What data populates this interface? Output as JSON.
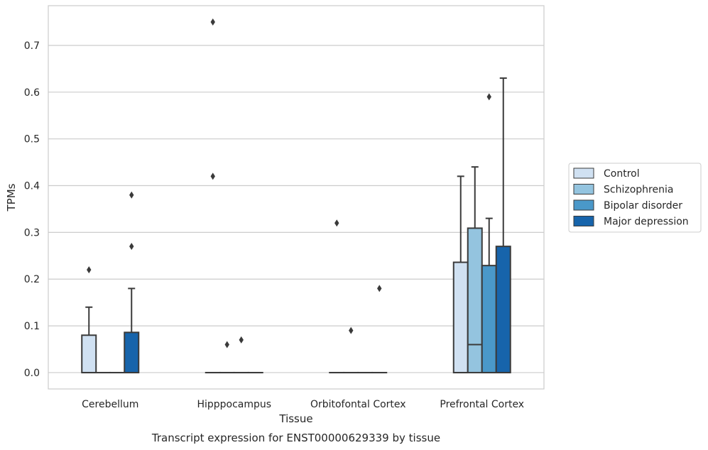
{
  "caption": "Transcript expression for ENST00000629339 by tissue",
  "chart_data": {
    "type": "box",
    "xlabel": "Tissue",
    "ylabel": "TPMs",
    "ylim": [
      -0.035,
      0.785
    ],
    "yticks": [
      0.0,
      0.1,
      0.2,
      0.3,
      0.4,
      0.5,
      0.6,
      0.7
    ],
    "ytick_labels": [
      "0.0",
      "0.1",
      "0.2",
      "0.3",
      "0.4",
      "0.5",
      "0.6",
      "0.7"
    ],
    "grid": true,
    "legend_position": "right",
    "categories": [
      "Cerebellum",
      "Hipppocampus",
      "Orbitofontal Cortex",
      "Prefrontal Cortex"
    ],
    "series": [
      {
        "name": "Control",
        "color": "#d0e1f2",
        "boxes": [
          {
            "min": 0.0,
            "q1": 0.0,
            "median": 0.0,
            "q3": 0.08,
            "max": 0.14,
            "outliers": [
              0.22
            ]
          },
          {
            "min": 0.0,
            "q1": 0.0,
            "median": 0.0,
            "q3": 0.0,
            "max": 0.0,
            "outliers": [
              0.75,
              0.42
            ]
          },
          {
            "min": 0.0,
            "q1": 0.0,
            "median": 0.0,
            "q3": 0.0,
            "max": 0.0,
            "outliers": [
              0.32
            ]
          },
          {
            "min": 0.0,
            "q1": 0.0,
            "median": 0.0,
            "q3": 0.236,
            "max": 0.42,
            "outliers": []
          }
        ]
      },
      {
        "name": "Schizophrenia",
        "color": "#94c4df",
        "boxes": [
          {
            "min": 0.0,
            "q1": 0.0,
            "median": 0.0,
            "q3": 0.0,
            "max": 0.0,
            "outliers": []
          },
          {
            "min": 0.0,
            "q1": 0.0,
            "median": 0.0,
            "q3": 0.0,
            "max": 0.0,
            "outliers": [
              0.06
            ]
          },
          {
            "min": 0.0,
            "q1": 0.0,
            "median": 0.0,
            "q3": 0.0,
            "max": 0.0,
            "outliers": [
              0.09
            ]
          },
          {
            "min": 0.0,
            "q1": 0.0,
            "median": 0.06,
            "q3": 0.309,
            "max": 0.44,
            "outliers": []
          }
        ]
      },
      {
        "name": "Bipolar disorder",
        "color": "#4a98c9",
        "boxes": [
          {
            "min": 0.0,
            "q1": 0.0,
            "median": 0.0,
            "q3": 0.0,
            "max": 0.0,
            "outliers": []
          },
          {
            "min": 0.0,
            "q1": 0.0,
            "median": 0.0,
            "q3": 0.0,
            "max": 0.0,
            "outliers": [
              0.07
            ]
          },
          {
            "min": 0.0,
            "q1": 0.0,
            "median": 0.0,
            "q3": 0.0,
            "max": 0.0,
            "outliers": []
          },
          {
            "min": 0.0,
            "q1": 0.0,
            "median": 0.0,
            "q3": 0.229,
            "max": 0.33,
            "outliers": [
              0.59
            ]
          }
        ]
      },
      {
        "name": "Major depression",
        "color": "#1764ab",
        "boxes": [
          {
            "min": 0.0,
            "q1": 0.0,
            "median": 0.0,
            "q3": 0.086,
            "max": 0.18,
            "outliers": [
              0.27,
              0.38
            ]
          },
          {
            "min": 0.0,
            "q1": 0.0,
            "median": 0.0,
            "q3": 0.0,
            "max": 0.0,
            "outliers": []
          },
          {
            "min": 0.0,
            "q1": 0.0,
            "median": 0.0,
            "q3": 0.0,
            "max": 0.0,
            "outliers": [
              0.18
            ]
          },
          {
            "min": 0.0,
            "q1": 0.0,
            "median": 0.0,
            "q3": 0.27,
            "max": 0.63,
            "outliers": []
          }
        ]
      }
    ]
  }
}
